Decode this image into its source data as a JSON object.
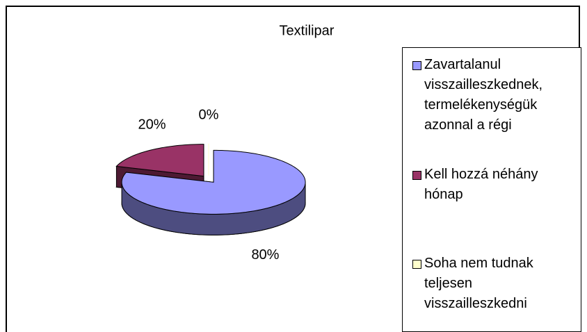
{
  "chart_data": {
    "type": "pie",
    "title": "Textilipar",
    "categories": [
      "Zavartalanul visszailleszkednek, termelékenységük azonnal a régi",
      "Kell hozzá néhány hónap",
      "Soha nem tudnak teljesen visszailleszkedni"
    ],
    "values": [
      80,
      20,
      0
    ],
    "value_labels": [
      "80%",
      "20%",
      "0%"
    ],
    "colors": [
      "#9999ff",
      "#993366",
      "#ffffcc"
    ],
    "legend": "right"
  }
}
